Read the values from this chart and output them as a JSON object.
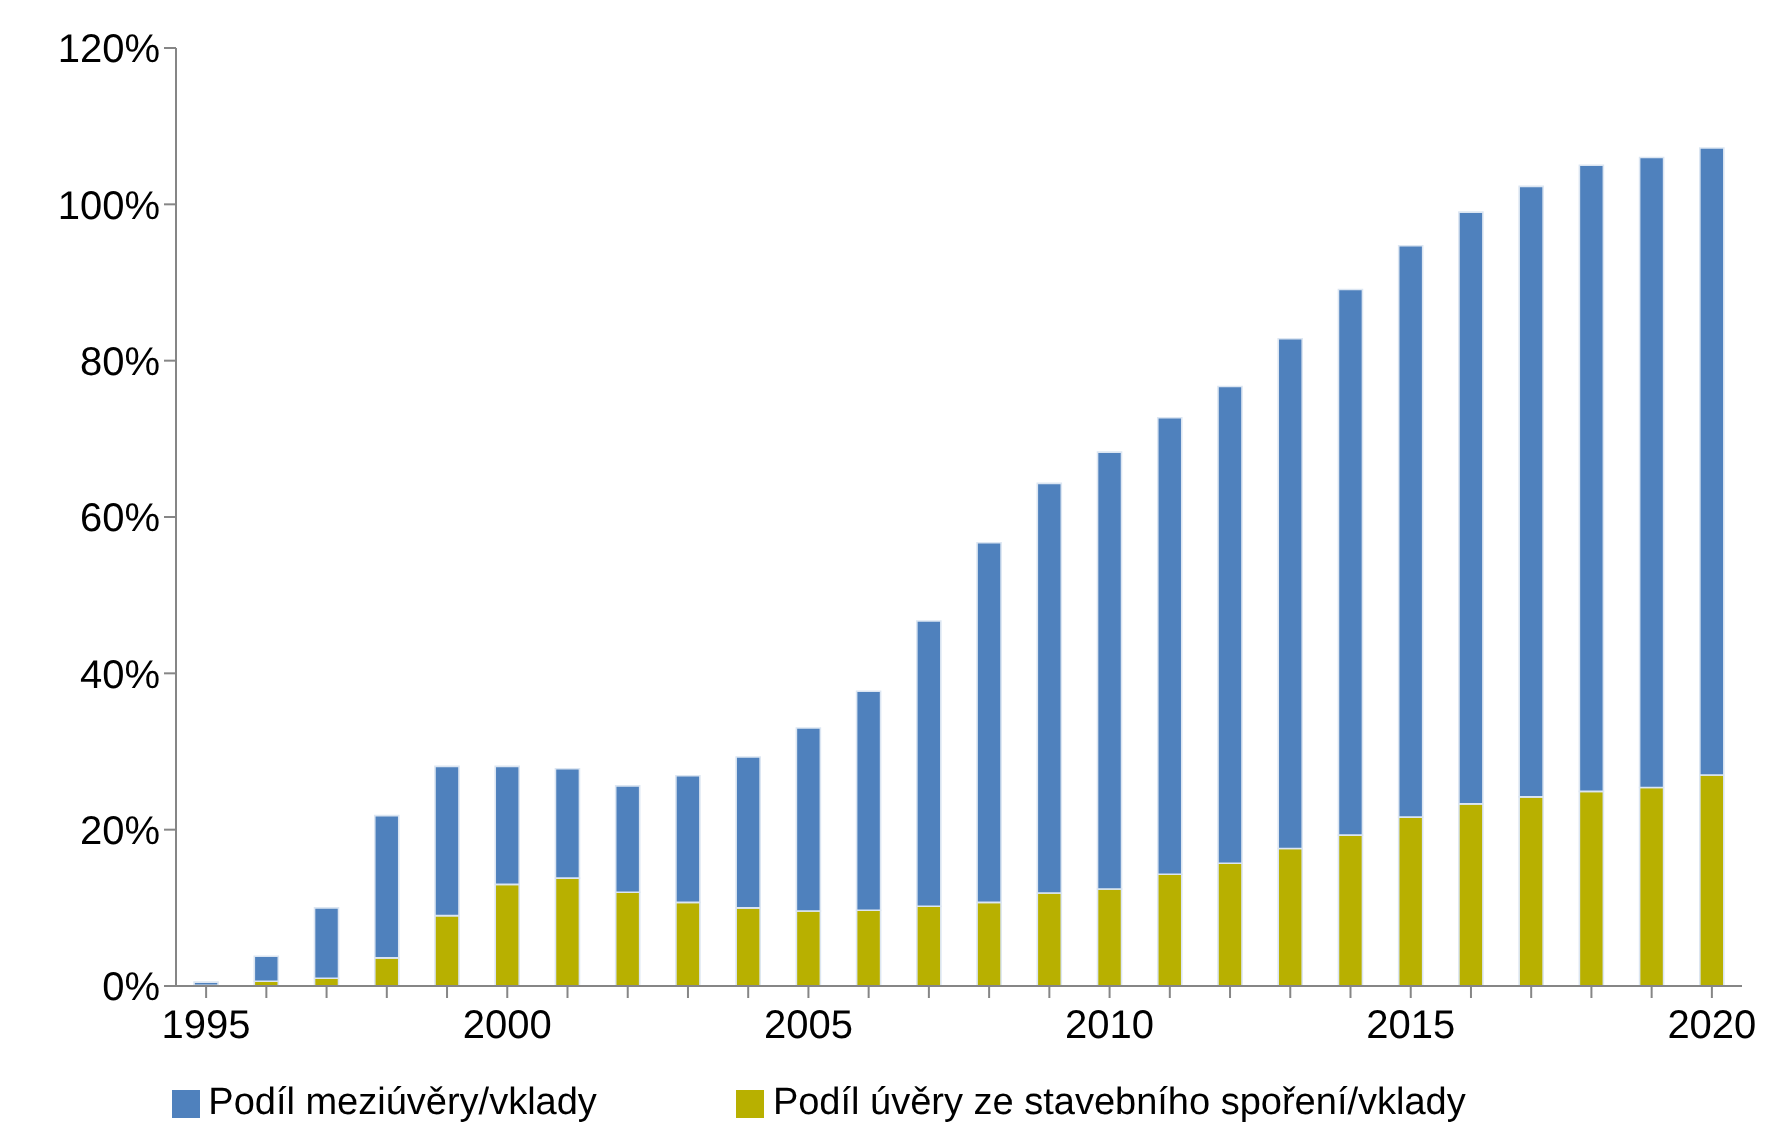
{
  "chart_data": {
    "type": "bar",
    "stacked": true,
    "categories": [
      "1995",
      null,
      null,
      null,
      null,
      "2000",
      null,
      null,
      null,
      null,
      "2005",
      null,
      null,
      null,
      null,
      "2010",
      null,
      null,
      null,
      null,
      "2015",
      null,
      null,
      null,
      null,
      "2020"
    ],
    "series": [
      {
        "name": "Podíl úvěry ze stavebního spoření/vklady",
        "color": "#b8b000",
        "values": [
          0.1,
          0.6,
          1,
          3.6,
          9,
          13,
          13.8,
          12,
          10.7,
          10,
          9.6,
          9.7,
          10.2,
          10.7,
          11.9,
          12.4,
          14.3,
          15.7,
          17.6,
          19.3,
          21.6,
          23.3,
          24.2,
          24.9,
          25.4,
          27
        ]
      },
      {
        "name": "Podíl meziúvěry/vklady",
        "color": "#4f81bd",
        "values": [
          0.4,
          3.2,
          9,
          18.2,
          19.1,
          15.1,
          14,
          13.6,
          16.2,
          19.3,
          23.4,
          28,
          36.5,
          46,
          52.4,
          55.9,
          58.4,
          61,
          65.2,
          69.8,
          73.1,
          75.7,
          78.1,
          80.1,
          80.6,
          80.2
        ]
      }
    ],
    "ylim": [
      0,
      120
    ],
    "yticks": [
      {
        "value": 0,
        "label": "0%"
      },
      {
        "value": 20,
        "label": "20%"
      },
      {
        "value": 40,
        "label": "40%"
      },
      {
        "value": 60,
        "label": "60%"
      },
      {
        "value": 80,
        "label": "80%"
      },
      {
        "value": 100,
        "label": "100%"
      },
      {
        "value": 120,
        "label": "120%"
      }
    ],
    "grid": false,
    "legend": "bottom"
  }
}
